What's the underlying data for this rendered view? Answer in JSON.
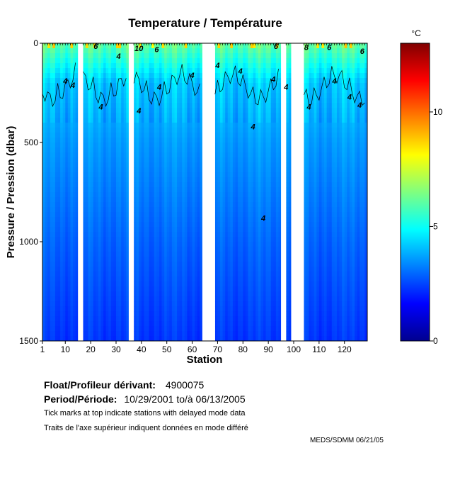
{
  "chart_data": {
    "type": "heatmap",
    "title": "Temperature / Température",
    "xlabel": "Station",
    "ylabel": "Pressure / Pression (dbar)",
    "xlim": [
      1,
      129
    ],
    "ylim": [
      0,
      1500
    ],
    "y_inverted": true,
    "x_ticks": [
      1,
      10,
      20,
      30,
      40,
      50,
      60,
      70,
      80,
      90,
      100,
      110,
      120
    ],
    "y_ticks": [
      0,
      500,
      1000,
      1500
    ],
    "colorbar": {
      "unit": "°C",
      "range": [
        0,
        13
      ],
      "ticks": [
        0,
        5,
        10
      ],
      "colormap": "jet"
    },
    "missing_stations": [
      [
        15,
        16
      ],
      [
        35,
        36
      ],
      [
        64,
        68
      ],
      [
        95,
        96
      ],
      [
        99,
        103
      ]
    ],
    "profile": {
      "surface_temp": 6.2,
      "temp_at_200": 4.2,
      "temp_at_500": 3.6,
      "temp_at_1000": 2.9,
      "temp_at_1500": 2.3
    },
    "contour_labels": [
      {
        "station": 10,
        "pressure": 190,
        "label": "4"
      },
      {
        "station": 13,
        "pressure": 210,
        "label": "4"
      },
      {
        "station": 24,
        "pressure": 320,
        "label": "4"
      },
      {
        "station": 31,
        "pressure": 65,
        "label": "4"
      },
      {
        "station": 39,
        "pressure": 340,
        "label": "4"
      },
      {
        "station": 47,
        "pressure": 220,
        "label": "4"
      },
      {
        "station": 60,
        "pressure": 160,
        "label": "4"
      },
      {
        "station": 70,
        "pressure": 110,
        "label": "4"
      },
      {
        "station": 79,
        "pressure": 140,
        "label": "4"
      },
      {
        "station": 84,
        "pressure": 420,
        "label": "4"
      },
      {
        "station": 88,
        "pressure": 880,
        "label": "4"
      },
      {
        "station": 92,
        "pressure": 180,
        "label": "4"
      },
      {
        "station": 97,
        "pressure": 220,
        "label": "4"
      },
      {
        "station": 106,
        "pressure": 320,
        "label": "4"
      },
      {
        "station": 116,
        "pressure": 190,
        "label": "4"
      },
      {
        "station": 122,
        "pressure": 270,
        "label": "4"
      },
      {
        "station": 126,
        "pressure": 310,
        "label": "4"
      },
      {
        "station": 22,
        "pressure": 15,
        "label": "6"
      },
      {
        "station": 46,
        "pressure": 30,
        "label": "6"
      },
      {
        "station": 93,
        "pressure": 15,
        "label": "6"
      },
      {
        "station": 114,
        "pressure": 20,
        "label": "6"
      },
      {
        "station": 127,
        "pressure": 40,
        "label": "6"
      },
      {
        "station": 39,
        "pressure": 25,
        "label": "10"
      },
      {
        "station": 105,
        "pressure": 20,
        "label": "8"
      }
    ]
  },
  "colorbar_label": "°C",
  "info": {
    "float_label": "Float/Profileur dérivant:",
    "float_id": "4900075",
    "period_label": "Period/Période:",
    "period_value": "10/29/2001  to/à  06/13/2005",
    "note_en": "Tick marks at top indicate stations with delayed mode data",
    "note_fr": "Traits de l'axe supérieur indiquent données en mode différé"
  },
  "credit": "MEDS/SDMM  06/21/05"
}
